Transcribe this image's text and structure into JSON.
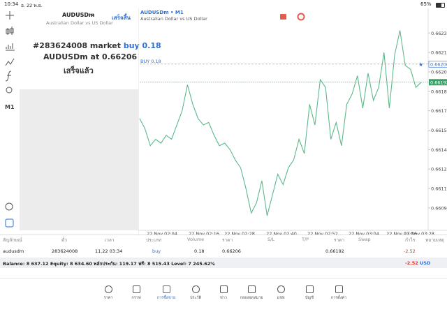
{
  "status_bar": {
    "time": "10:34",
    "date": "อ. 22 พ.ย.",
    "battery": "65%"
  },
  "toolbar": {
    "timeframe": "M1"
  },
  "order_panel": {
    "symbol": "AUDUSDm",
    "description": "Australian Dollar vs US Dollar",
    "done_button": "เสร็จสิ้น",
    "ticket_text": "#283624008 market",
    "side_text": "buy 0.18",
    "symbol_at": "AUDUSDm at",
    "price": "0.66206",
    "status": "เสร็จแล้ว"
  },
  "chart_data": {
    "type": "line",
    "title": "AUDUSDm • M1",
    "subtitle": "Australian Dollar vs US Dollar",
    "x_labels": [
      "22 Nov 02:04",
      "22 Nov 02:16",
      "22 Nov 02:28",
      "22 Nov 02:40",
      "22 Nov 02:52",
      "22 Nov 03:04",
      "22 Nov 03:16",
      "22 Nov 03:28"
    ],
    "series": [
      {
        "name": "AUDUSDm",
        "color": "#5cb88a",
        "values": [
          0.66164,
          0.66156,
          0.66143,
          0.66148,
          0.66145,
          0.66151,
          0.66148,
          0.66159,
          0.6617,
          0.6619,
          0.66175,
          0.66164,
          0.66159,
          0.66161,
          0.66151,
          0.66143,
          0.66145,
          0.6614,
          0.66132,
          0.66126,
          0.6611,
          0.66091,
          0.66099,
          0.66116,
          0.66089,
          0.66105,
          0.66121,
          0.66113,
          0.66126,
          0.66132,
          0.66148,
          0.66137,
          0.66175,
          0.66159,
          0.66194,
          0.66188,
          0.66148,
          0.66161,
          0.66143,
          0.66175,
          0.66183,
          0.66197,
          0.66172,
          0.66199,
          0.66178,
          0.66188,
          0.66215,
          0.66172,
          0.66213,
          0.66232,
          0.66205,
          0.66202,
          0.66188,
          0.66192
        ]
      }
    ],
    "ylim": [
      0.66082,
      0.66249
    ],
    "yticks": [
      {
        "value": 0.6623,
        "label": "0.66230"
      },
      0.66215,
      {
        "value": 0.662,
        "label": "0.66200"
      },
      0.66185,
      {
        "value": 0.6617,
        "label": "0.66170"
      },
      0.66155,
      {
        "value": 0.6614,
        "label": "0.66140"
      },
      0.66125,
      {
        "value": 0.6611,
        "label": "0.66110"
      },
      0.66095
    ],
    "buy_line": {
      "label": "BUY 0.18",
      "value": 0.66206
    },
    "bid_line": {
      "value": 0.66192
    }
  },
  "positions": {
    "headers": [
      "สัญลักษณ์",
      "ตั๋ว",
      "เวลา",
      "ประเภท",
      "Volume",
      "ราคา",
      "S/L",
      "T/P",
      "ราคา",
      "Swap",
      "กำไร",
      "หมายเหตุ"
    ],
    "row": {
      "symbol": "audusdm",
      "ticket": "283624008",
      "time": "11.22 03:34",
      "type": "buy",
      "volume": "0.18",
      "price": "0.66206",
      "current_price": "0.66192",
      "profit": "-2.52"
    },
    "summary": "Balance: 8 637.12 Equity: 8 634.60 พลักประกัน: 119.17 ฟรี: 8 515.43 Level: 7 245.62%",
    "total_profit": "-2.52",
    "currency": "USD"
  },
  "nav": [
    "ราคา",
    "กราฟ",
    "การซื้อขาย",
    "ประวัติ",
    "ข่าว",
    "กล่องจดหมาย",
    "แชท",
    "บัญชี",
    "การตั้งค่า"
  ]
}
